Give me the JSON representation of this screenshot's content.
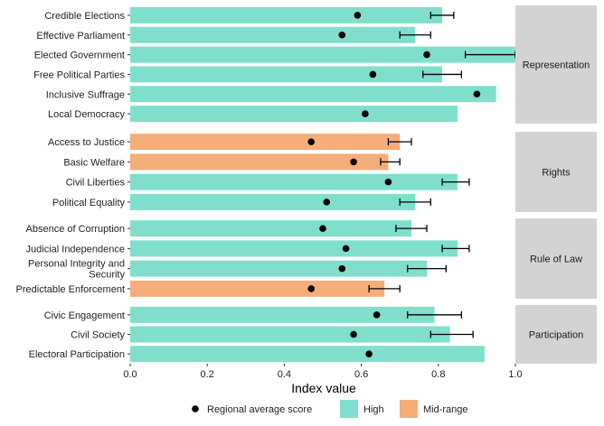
{
  "chart_data": {
    "type": "bar",
    "orientation": "horizontal",
    "xlabel": "Index value",
    "xlim": [
      0,
      1.0
    ],
    "xticks": [
      "0.0",
      "0.2",
      "0.4",
      "0.6",
      "0.8",
      "1.0"
    ],
    "xtick_values": [
      0,
      0.2,
      0.4,
      0.6,
      0.8,
      1.0
    ],
    "colors": {
      "High": "#7fdfcc",
      "Mid-range": "#f5ad7a",
      "point": "#000000",
      "strip": "#d3d3d3",
      "panel": "#ffffff"
    },
    "panels": [
      {
        "name": "Representation",
        "rows": [
          {
            "label": "Credible Elections",
            "value": 0.81,
            "level": "High",
            "avg": 0.59,
            "err_low": 0.78,
            "err_high": 0.84
          },
          {
            "label": "Effective Parliament",
            "value": 0.74,
            "level": "High",
            "avg": 0.55,
            "err_low": 0.7,
            "err_high": 0.78
          },
          {
            "label": "Elected Government",
            "value": 1.0,
            "level": "High",
            "avg": 0.77,
            "err_low": 0.87,
            "err_high": 1.0
          },
          {
            "label": "Free Political Parties",
            "value": 0.81,
            "level": "High",
            "avg": 0.63,
            "err_low": 0.76,
            "err_high": 0.86
          },
          {
            "label": "Inclusive Suffrage",
            "value": 0.95,
            "level": "High",
            "avg": 0.9,
            "err_low": null,
            "err_high": null
          },
          {
            "label": "Local Democracy",
            "value": 0.85,
            "level": "High",
            "avg": 0.61,
            "err_low": null,
            "err_high": null
          }
        ]
      },
      {
        "name": "Rights",
        "rows": [
          {
            "label": "Access to Justice",
            "value": 0.7,
            "level": "Mid-range",
            "avg": 0.47,
            "err_low": 0.67,
            "err_high": 0.73
          },
          {
            "label": "Basic Welfare",
            "value": 0.67,
            "level": "Mid-range",
            "avg": 0.58,
            "err_low": 0.65,
            "err_high": 0.7
          },
          {
            "label": "Civil Liberties",
            "value": 0.85,
            "level": "High",
            "avg": 0.67,
            "err_low": 0.81,
            "err_high": 0.88
          },
          {
            "label": "Political Equality",
            "value": 0.74,
            "level": "High",
            "avg": 0.51,
            "err_low": 0.7,
            "err_high": 0.78
          }
        ]
      },
      {
        "name": "Rule of Law",
        "rows": [
          {
            "label": "Absence of Corruption",
            "value": 0.73,
            "level": "High",
            "avg": 0.5,
            "err_low": 0.69,
            "err_high": 0.77
          },
          {
            "label": "Judicial Independence",
            "value": 0.85,
            "level": "High",
            "avg": 0.56,
            "err_low": 0.81,
            "err_high": 0.88
          },
          {
            "label": [
              "Personal Integrity and",
              "Security"
            ],
            "value": 0.77,
            "level": "High",
            "avg": 0.55,
            "err_low": 0.72,
            "err_high": 0.82
          },
          {
            "label": "Predictable Enforcement",
            "value": 0.66,
            "level": "Mid-range",
            "avg": 0.47,
            "err_low": 0.62,
            "err_high": 0.7
          }
        ]
      },
      {
        "name": "Participation",
        "rows": [
          {
            "label": "Civic Engagement",
            "value": 0.79,
            "level": "High",
            "avg": 0.64,
            "err_low": 0.72,
            "err_high": 0.86
          },
          {
            "label": "Civil Society",
            "value": 0.83,
            "level": "High",
            "avg": 0.58,
            "err_low": 0.78,
            "err_high": 0.89
          },
          {
            "label": "Electoral Participation",
            "value": 0.92,
            "level": "High",
            "avg": 0.62,
            "err_low": null,
            "err_high": null
          }
        ]
      }
    ],
    "legend": {
      "position": "bottom",
      "items": [
        {
          "kind": "point",
          "label": "Regional average score"
        },
        {
          "kind": "fill",
          "label": "High"
        },
        {
          "kind": "fill",
          "label": "Mid-range"
        }
      ]
    }
  }
}
